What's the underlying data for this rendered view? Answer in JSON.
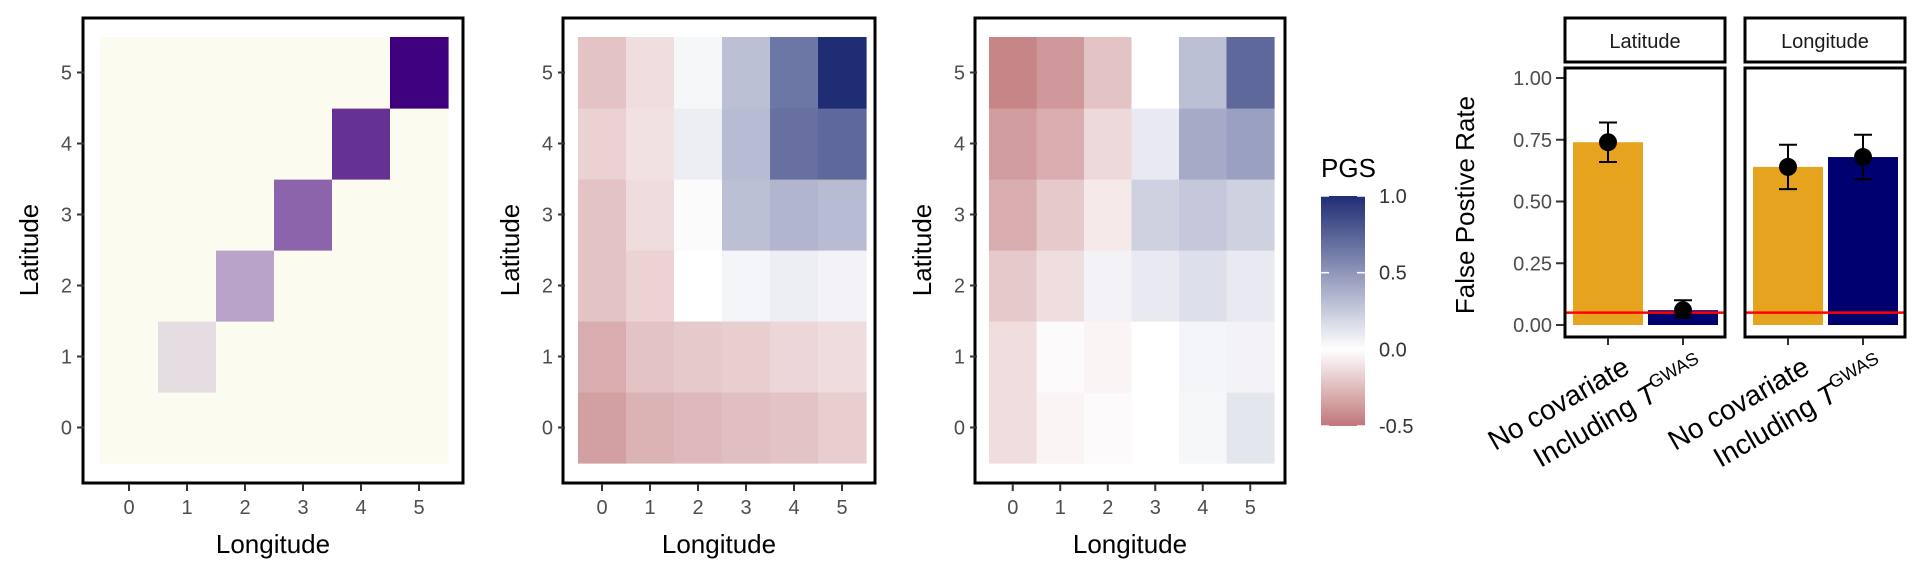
{
  "chart_data": [
    {
      "type": "heatmap",
      "xlabel": "Longitude",
      "ylabel": "Latitude",
      "x_ticks": [
        "0",
        "1",
        "2",
        "3",
        "4",
        "5"
      ],
      "y_ticks": [
        "0",
        "1",
        "2",
        "3",
        "4",
        "5"
      ],
      "colormap": "purples",
      "colors": {
        "low": "#fcfbf0",
        "high": "#3f007d"
      },
      "z_rows_lat0_to_lat5": [
        [
          0,
          0,
          0,
          0,
          0,
          0
        ],
        [
          0,
          0.12,
          0,
          0,
          0,
          0
        ],
        [
          0,
          0,
          0.35,
          0,
          0,
          0
        ],
        [
          0,
          0,
          0,
          0.6,
          0,
          0
        ],
        [
          0,
          0,
          0,
          0,
          0.8,
          0
        ],
        [
          0,
          0,
          0,
          0,
          0,
          1.0
        ]
      ]
    },
    {
      "type": "heatmap",
      "xlabel": "Longitude",
      "ylabel": "Latitude",
      "x_ticks": [
        "0",
        "1",
        "2",
        "3",
        "4",
        "5"
      ],
      "y_ticks": [
        "0",
        "1",
        "2",
        "3",
        "4",
        "5"
      ],
      "colormap": "diverging PGS",
      "z_rows_lat0_to_lat5": [
        [
          -0.35,
          -0.28,
          -0.26,
          -0.24,
          -0.22,
          -0.18
        ],
        [
          -0.3,
          -0.22,
          -0.2,
          -0.18,
          -0.15,
          -0.13
        ],
        [
          -0.22,
          -0.16,
          0.0,
          0.05,
          0.08,
          0.06
        ],
        [
          -0.22,
          -0.13,
          0.02,
          0.3,
          0.35,
          0.32
        ],
        [
          -0.17,
          -0.11,
          0.08,
          0.32,
          0.68,
          0.72
        ],
        [
          -0.22,
          -0.12,
          0.04,
          0.3,
          0.65,
          1.0
        ]
      ]
    },
    {
      "type": "heatmap",
      "xlabel": "Longitude",
      "ylabel": "Latitude",
      "x_ticks": [
        "0",
        "1",
        "2",
        "3",
        "4",
        "5"
      ],
      "y_ticks": [
        "0",
        "1",
        "2",
        "3",
        "4",
        "5"
      ],
      "colormap": "diverging PGS",
      "z_rows_lat0_to_lat5": [
        [
          -0.12,
          -0.04,
          -0.02,
          0.0,
          0.04,
          0.12
        ],
        [
          -0.12,
          -0.02,
          -0.04,
          0.0,
          0.05,
          0.06
        ],
        [
          -0.2,
          -0.12,
          0.06,
          0.1,
          0.15,
          0.1
        ],
        [
          -0.3,
          -0.2,
          -0.08,
          0.22,
          0.26,
          0.22
        ],
        [
          -0.36,
          -0.3,
          -0.14,
          0.1,
          0.4,
          0.45
        ],
        [
          -0.45,
          -0.38,
          -0.22,
          0.0,
          0.3,
          0.72
        ]
      ]
    },
    {
      "type": "bar",
      "ylabel": "False Postive Rate",
      "ylim": [
        0,
        1.05
      ],
      "y_ticks": [
        "0.00",
        "0.25",
        "0.50",
        "0.75",
        "1.00"
      ],
      "reference_line": 0.05,
      "facets": [
        {
          "strip": "Latitude",
          "categories": [
            "No covariate",
            "Including T"
          ],
          "values": [
            0.74,
            0.06
          ],
          "point": [
            0.74,
            0.06
          ],
          "err_low": [
            0.66,
            0.03
          ],
          "err_high": [
            0.82,
            0.1
          ]
        },
        {
          "strip": "Longitude",
          "categories": [
            "No covariate",
            "Including T"
          ],
          "values": [
            0.64,
            0.68
          ],
          "point": [
            0.64,
            0.68
          ],
          "err_low": [
            0.55,
            0.59
          ],
          "err_high": [
            0.73,
            0.77
          ]
        }
      ],
      "superscript": "GWAS",
      "colors": {
        "no_covariate": "#e6a31e",
        "including": "#000070",
        "reference": "#ff0000"
      }
    }
  ],
  "legend": {
    "title": "PGS",
    "ticks": [
      "1.0",
      "0.5",
      "0.0",
      "-0.5"
    ],
    "tick_values": [
      1.0,
      0.5,
      0.0,
      -0.5
    ],
    "range": [
      -0.5,
      1.0
    ],
    "colors": {
      "negative": "#c0777a",
      "zero": "#ffffff",
      "positive": "#1f2d74"
    }
  }
}
